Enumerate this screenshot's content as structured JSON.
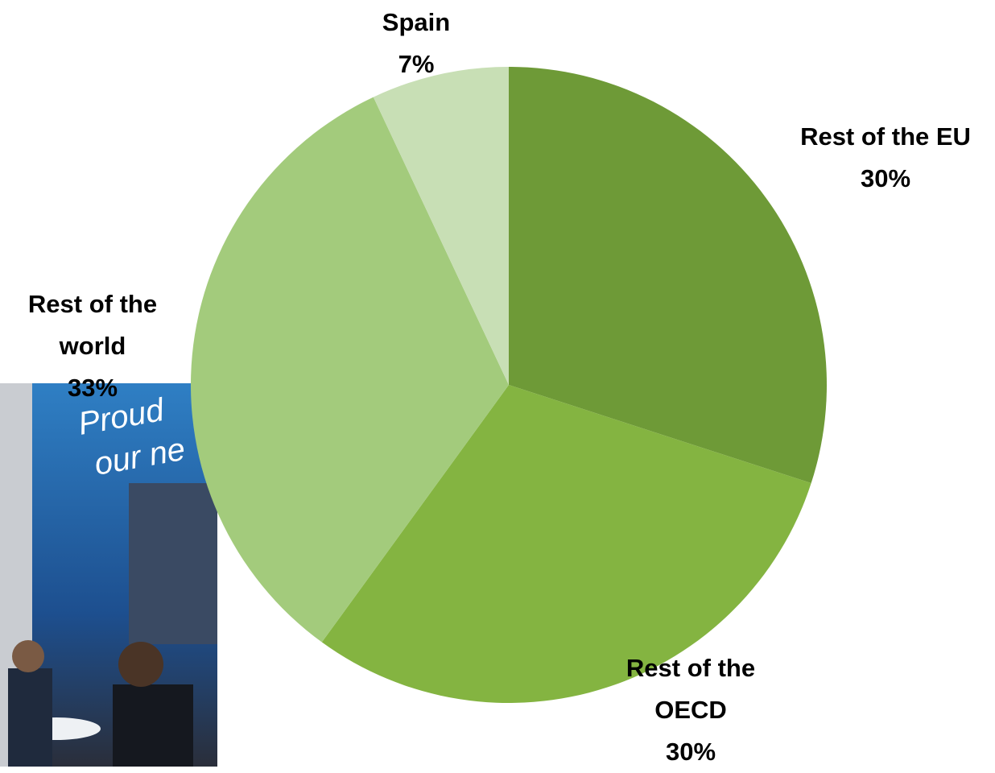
{
  "chart_data": {
    "type": "pie",
    "categories": [
      "Rest of the EU",
      "Rest of the OECD",
      "Rest of the world",
      "Spain"
    ],
    "values": [
      30,
      30,
      33,
      7
    ],
    "value_labels": [
      "30%",
      "30%",
      "33%",
      "7%"
    ],
    "colors": [
      "#6e9a37",
      "#84b441",
      "#a3cb7c",
      "#c8dfb5"
    ]
  },
  "background_photo": {
    "text": [
      "Proud",
      "our ne"
    ]
  }
}
